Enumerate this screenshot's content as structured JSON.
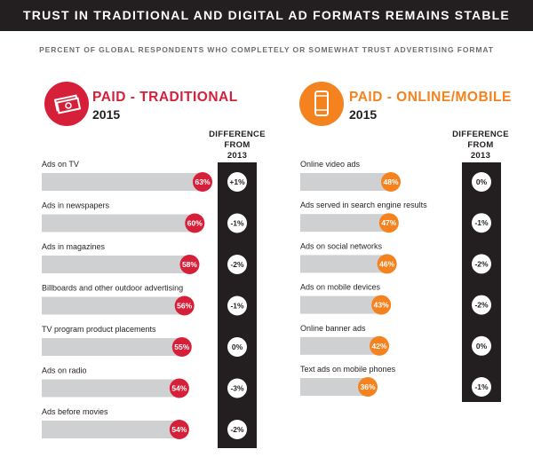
{
  "header": {
    "title": "TRUST IN TRADITIONAL AND DIGITAL AD FORMATS REMAINS STABLE"
  },
  "subtitle": "PERCENT OF GLOBAL RESPONDENTS WHO COMPLETELY OR SOMEWHAT TRUST ADVERTISING FORMAT",
  "colors": {
    "traditional": "#d6203a",
    "online": "#f4821f",
    "dark": "#231f20",
    "bar": "#cfd0d2"
  },
  "chart_data": [
    {
      "type": "bar",
      "title": "PAID - TRADITIONAL",
      "year": "2015",
      "icon": "money-icon",
      "diff_header": [
        "DIFFERENCE",
        "FROM",
        "2013"
      ],
      "categories": [
        "Ads on TV",
        "Ads in newspapers",
        "Ads in magazines",
        "Billboards and other outdoor advertising",
        "TV program product placements",
        "Ads on radio",
        "Ads before movies"
      ],
      "values": [
        63,
        60,
        58,
        56,
        55,
        54,
        54
      ],
      "value_labels": [
        "63%",
        "60%",
        "58%",
        "56%",
        "55%",
        "54%",
        "54%"
      ],
      "differences": [
        "+1%",
        "-1%",
        "-2%",
        "-1%",
        "0%",
        "-3%",
        "-2%"
      ],
      "unit": "%"
    },
    {
      "type": "bar",
      "title": "PAID - ONLINE/MOBILE",
      "year": "2015",
      "icon": "mobile-phone-icon",
      "diff_header": [
        "DIFFERENCE",
        "FROM",
        "2013"
      ],
      "categories": [
        "Online video ads",
        "Ads served in search engine results",
        "Ads on social networks",
        "Ads on mobile devices",
        "Online banner ads",
        "Text ads on mobile phones"
      ],
      "values": [
        48,
        47,
        46,
        43,
        42,
        36
      ],
      "value_labels": [
        "48%",
        "47%",
        "46%",
        "43%",
        "42%",
        "36%"
      ],
      "differences": [
        "0%",
        "-1%",
        "-2%",
        "-2%",
        "0%",
        "-1%"
      ],
      "unit": "%"
    }
  ]
}
